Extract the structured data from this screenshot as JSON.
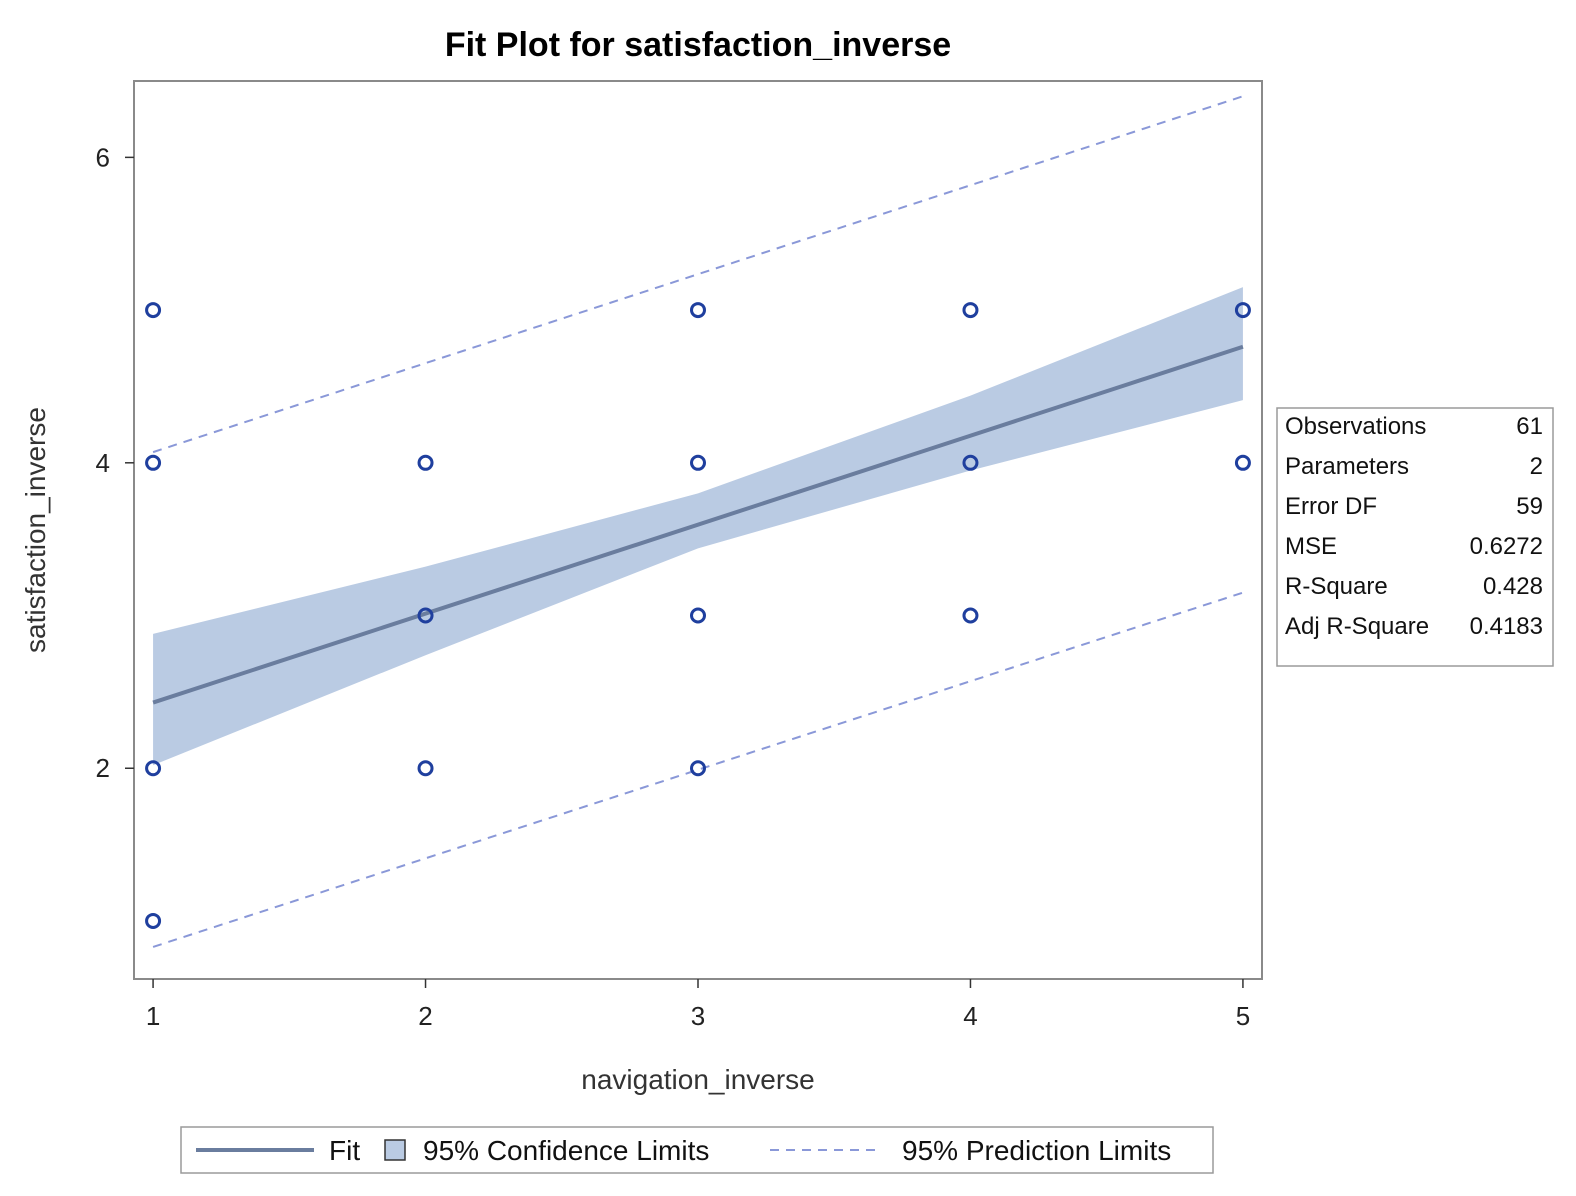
{
  "colors": {
    "marker": "#1F3F9E",
    "fit": "#6A7D9E",
    "confidence_band": "#BACBE3",
    "prediction": "#8A98D8",
    "frame": "#8A8A8A"
  },
  "chart_data": {
    "type": "scatter",
    "title": "Fit Plot for satisfaction_inverse",
    "xlabel": "navigation_inverse",
    "ylabel": "satisfaction_inverse",
    "xlim": [
      0.93,
      5.07
    ],
    "ylim": [
      0.62,
      6.5
    ],
    "x_ticks": [
      1,
      2,
      3,
      4,
      5
    ],
    "y_ticks": [
      2,
      4,
      6
    ],
    "grid": false,
    "points": [
      {
        "x": 1,
        "y": 5
      },
      {
        "x": 1,
        "y": 4
      },
      {
        "x": 1,
        "y": 2
      },
      {
        "x": 1,
        "y": 1
      },
      {
        "x": 2,
        "y": 4
      },
      {
        "x": 2,
        "y": 3
      },
      {
        "x": 2,
        "y": 2
      },
      {
        "x": 3,
        "y": 5
      },
      {
        "x": 3,
        "y": 4
      },
      {
        "x": 3,
        "y": 3
      },
      {
        "x": 3,
        "y": 2
      },
      {
        "x": 4,
        "y": 5
      },
      {
        "x": 4,
        "y": 4
      },
      {
        "x": 4,
        "y": 3
      },
      {
        "x": 5,
        "y": 5
      },
      {
        "x": 5,
        "y": 4
      }
    ],
    "fit_line": {
      "x": [
        1,
        5
      ],
      "y": [
        2.43,
        4.76
      ]
    },
    "confidence_limits": {
      "x": [
        1,
        2,
        3,
        4,
        5
      ],
      "lower": [
        2.02,
        2.74,
        3.44,
        3.95,
        4.41
      ],
      "upper": [
        2.88,
        3.32,
        3.8,
        4.44,
        5.15
      ]
    },
    "prediction_limits": {
      "x": [
        1,
        5
      ],
      "lower": [
        0.83,
        3.15
      ],
      "upper": [
        4.07,
        6.4
      ]
    },
    "stats_table": [
      {
        "label": "Observations",
        "value": "61"
      },
      {
        "label": "Parameters",
        "value": "2"
      },
      {
        "label": "Error DF",
        "value": "59"
      },
      {
        "label": "MSE",
        "value": "0.6272"
      },
      {
        "label": "R-Square",
        "value": "0.428"
      },
      {
        "label": "Adj R-Square",
        "value": "0.4183"
      }
    ],
    "legend": {
      "placement": "bottom",
      "entries": [
        {
          "label": "Fit",
          "kind": "line"
        },
        {
          "label": "95% Confidence Limits",
          "kind": "band"
        },
        {
          "label": "95% Prediction Limits",
          "kind": "dashed"
        }
      ]
    }
  }
}
